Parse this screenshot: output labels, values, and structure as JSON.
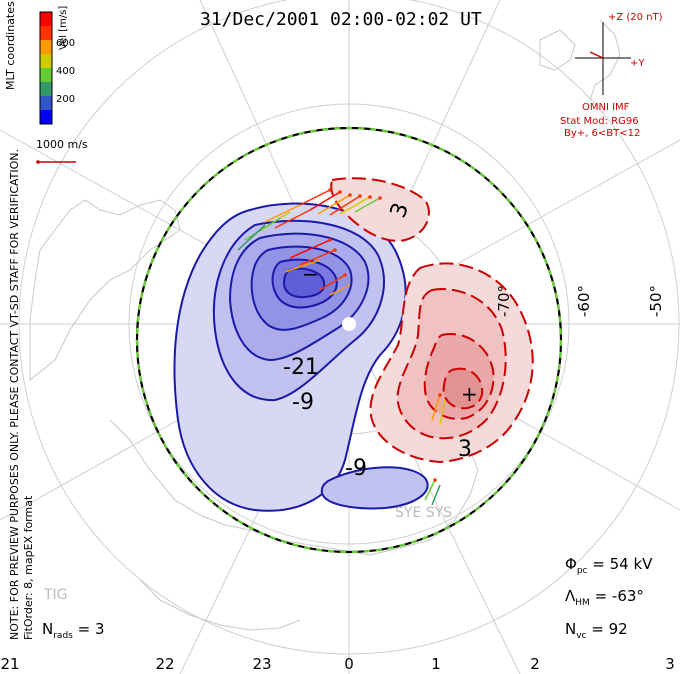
{
  "title": "31/Dec/2001 02:00-02:02 UT",
  "coordinate_system": "MLT coordinates",
  "velocity_scale": {
    "label": "Vel [m/s]",
    "ticks": [
      "600",
      "400",
      "200"
    ],
    "colors": [
      "#0000ff",
      "#3355cc",
      "#339966",
      "#66cc33",
      "#cccc00",
      "#ff9900",
      "#ff3300",
      "#ff0000"
    ]
  },
  "vector_scale_label": "1000 m/s",
  "imf": {
    "magnitude_label": "+Z (20 nT)",
    "y_label": "+Y",
    "source": "OMNI IMF",
    "model_line1": "Stat Mod: RG96",
    "model_line2": "By+, 6<BT<12"
  },
  "note_line1": "NOTE: FOR PREVIEW PURPOSES ONLY. PLEASE CONTACT VT-SD STAFF FOR VERIFICATION.",
  "note_line2": "FitOrder: 8, mapEX format",
  "stats": {
    "nrads_label": "N",
    "nrads_sub": "rads",
    "nrads_value": "= 3",
    "phi_label": "Φ",
    "phi_sub": "pc",
    "phi_value": "= 54 kV",
    "lam_label": "Λ",
    "lam_sub": "HM",
    "lam_value": "= -63°",
    "nvc_label": "N",
    "nvc_sub": "vc",
    "nvc_value": "= 92"
  },
  "mlt_ticks": [
    "21",
    "22",
    "23",
    "0",
    "1",
    "2",
    "3"
  ],
  "lat_labels": [
    "-70°",
    "-60°",
    "-50°"
  ],
  "contour_labels": [
    "-21",
    "-9",
    "-9",
    "3",
    "3"
  ],
  "extrema": {
    "min": "−",
    "max": "+"
  },
  "stations": [
    "TIG",
    "SYE SYS"
  ],
  "colors": {
    "negative_fill": "#9999ee",
    "positive_fill": "#f2b8b8",
    "negative_line": "#1a1aaa",
    "positive_line": "#cc0000",
    "hmb_dash": "#66cc33"
  }
}
